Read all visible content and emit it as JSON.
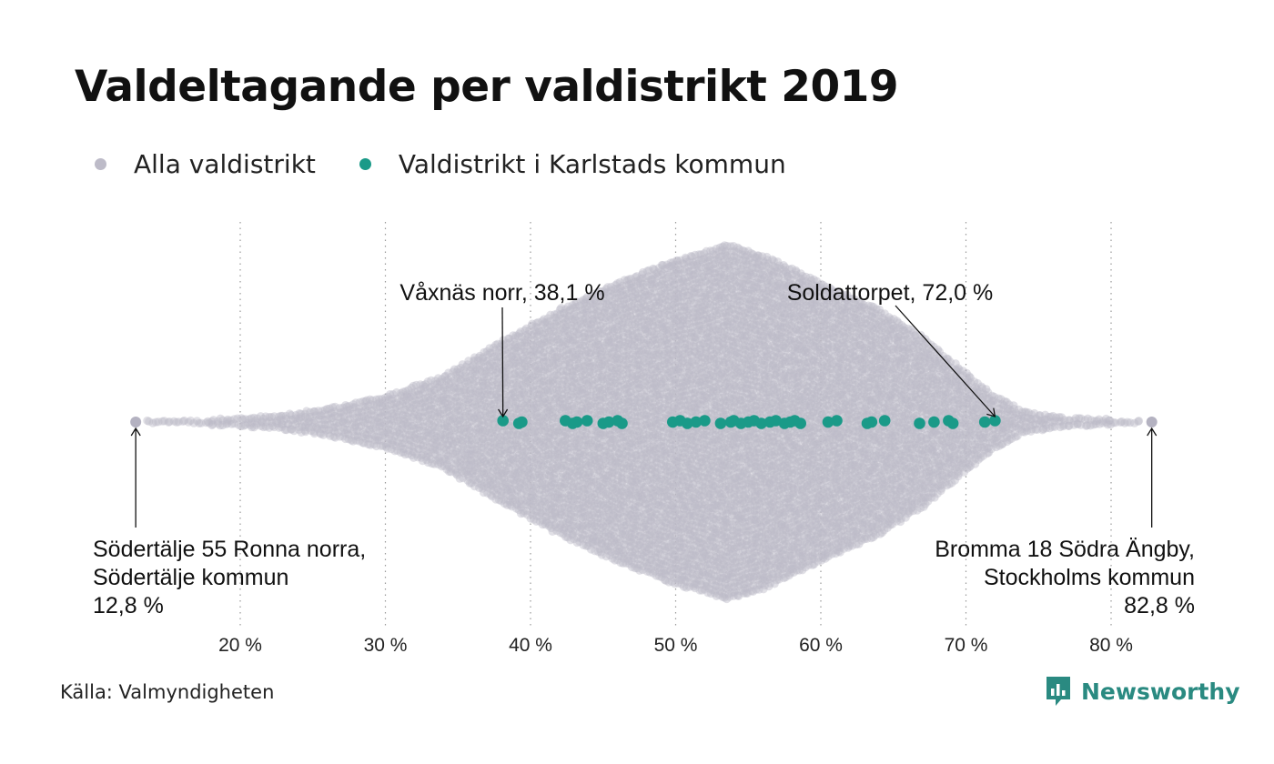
{
  "title": "Valdeltagande per valdistrikt 2019",
  "legend": [
    {
      "label": "Alla valdistrikt",
      "color": "#bdbbc8"
    },
    {
      "label": "Valdistrikt i Karlstads kommun",
      "color": "#1a9a88"
    }
  ],
  "source": "Källa: Valmyndigheten",
  "brand": {
    "name": "Newsworthy",
    "color": "#2a8a81"
  },
  "chart_data": {
    "type": "scatter",
    "title": "Valdeltagande per valdistrikt 2019",
    "xlabel": "",
    "ylabel": "",
    "xlim": [
      12,
      84
    ],
    "x_ticks": [
      20,
      30,
      40,
      50,
      60,
      70,
      80
    ],
    "x_tick_labels": [
      "20 %",
      "30 %",
      "40 %",
      "50 %",
      "60 %",
      "70 %",
      "80 %"
    ],
    "grid": "vertical dotted",
    "legend_position": "top-left",
    "all_districts_range": [
      12.8,
      82.8
    ],
    "series": [
      {
        "name": "Valdistrikt i Karlstads kommun",
        "color": "#1a9a88",
        "values": [
          38.1,
          39.2,
          39.4,
          42.4,
          42.9,
          43.2,
          43.9,
          45.0,
          45.4,
          46.0,
          46.3,
          49.8,
          50.3,
          50.8,
          51.4,
          52.0,
          53.1,
          53.8,
          54.0,
          54.5,
          55.0,
          55.4,
          55.9,
          56.5,
          56.9,
          57.5,
          57.9,
          58.2,
          58.6,
          60.5,
          61.1,
          63.2,
          63.5,
          64.4,
          66.8,
          67.8,
          68.8,
          69.1,
          71.3,
          72.0
        ]
      }
    ],
    "annotations": [
      {
        "label": "Våxnäs norr, 38,1 %",
        "x": 38.1
      },
      {
        "label": "Soldattorpet, 72,0 %",
        "x": 72.0
      },
      {
        "lines": [
          "Södertälje 55 Ronna norra,",
          "Södertälje kommun",
          "12,8 %"
        ],
        "x": 12.8
      },
      {
        "lines": [
          "Bromma 18 Södra Ängby,",
          "Stockholms kommun",
          "82,8 %"
        ],
        "x": 82.8
      }
    ]
  }
}
